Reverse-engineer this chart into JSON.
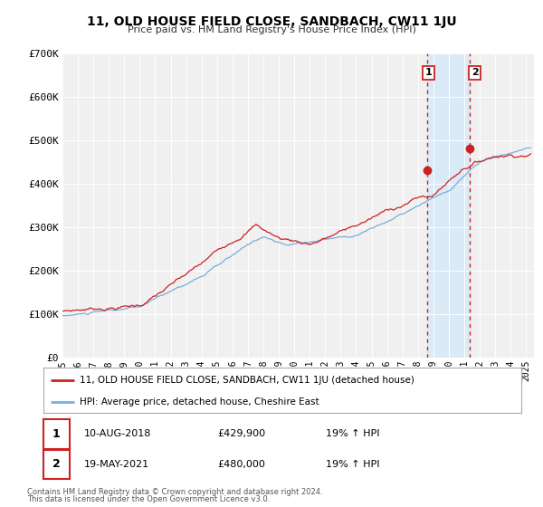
{
  "title": "11, OLD HOUSE FIELD CLOSE, SANDBACH, CW11 1JU",
  "subtitle": "Price paid vs. HM Land Registry's House Price Index (HPI)",
  "ylim": [
    0,
    700000
  ],
  "yticks": [
    0,
    100000,
    200000,
    300000,
    400000,
    500000,
    600000,
    700000
  ],
  "ytick_labels": [
    "£0",
    "£100K",
    "£200K",
    "£300K",
    "£400K",
    "£500K",
    "£600K",
    "£700K"
  ],
  "xlim_start": 1995.0,
  "xlim_end": 2025.5,
  "hpi_color": "#7aaddc",
  "price_color": "#cc2222",
  "vline_color": "#cc2222",
  "shade_color": "#daeaf7",
  "transaction1_x": 2018.607,
  "transaction1_y": 429900,
  "transaction2_x": 2021.38,
  "transaction2_y": 480000,
  "legend_label1": "11, OLD HOUSE FIELD CLOSE, SANDBACH, CW11 1JU (detached house)",
  "legend_label2": "HPI: Average price, detached house, Cheshire East",
  "table_row1": [
    "1",
    "10-AUG-2018",
    "£429,900",
    "19% ↑ HPI"
  ],
  "table_row2": [
    "2",
    "19-MAY-2021",
    "£480,000",
    "19% ↑ HPI"
  ],
  "footer1": "Contains HM Land Registry data © Crown copyright and database right 2024.",
  "footer2": "This data is licensed under the Open Government Licence v3.0.",
  "background_color": "#ffffff",
  "plot_bg_color": "#f0f0f0"
}
